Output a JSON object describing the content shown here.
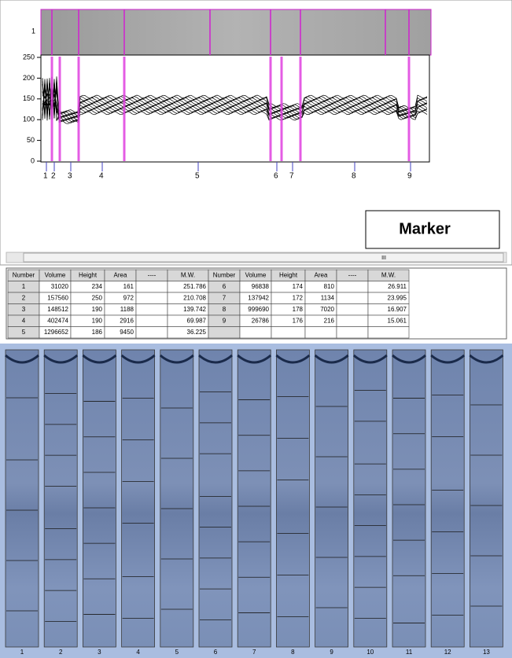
{
  "profile": {
    "strip_label": "1",
    "yticks": [
      250,
      200,
      150,
      100,
      50,
      0
    ],
    "markers": [
      "1",
      "2",
      "3",
      "4",
      "5",
      "6",
      "7",
      "8",
      "9"
    ]
  },
  "marker_button": "Marker",
  "scroll_thumb": "III",
  "table": {
    "header": [
      "Number",
      "Volume",
      "Height",
      "Area",
      "----",
      "M.W.",
      "Number",
      "Volume",
      "Height",
      "Area",
      "----",
      "M.W."
    ],
    "left_rows": [
      [
        "1",
        "31020",
        "234",
        "161",
        "251.786"
      ],
      [
        "2",
        "157560",
        "250",
        "972",
        "210.708"
      ],
      [
        "3",
        "148512",
        "190",
        "1188",
        "139.742"
      ],
      [
        "4",
        "402474",
        "190",
        "2916",
        "69.987"
      ],
      [
        "5",
        "1296652",
        "186",
        "9450",
        "36.225"
      ]
    ],
    "right_rows": [
      [
        "6",
        "96838",
        "174",
        "810",
        "26.911"
      ],
      [
        "7",
        "137942",
        "172",
        "1134",
        "23.995"
      ],
      [
        "8",
        "999690",
        "178",
        "7020",
        "16.907"
      ],
      [
        "9",
        "26786",
        "176",
        "216",
        "15.061"
      ]
    ]
  },
  "gel": {
    "lanes": [
      "1",
      "2",
      "3",
      "4",
      "5",
      "6",
      "7",
      "8",
      "9",
      "10",
      "11",
      "12",
      "13"
    ]
  }
}
